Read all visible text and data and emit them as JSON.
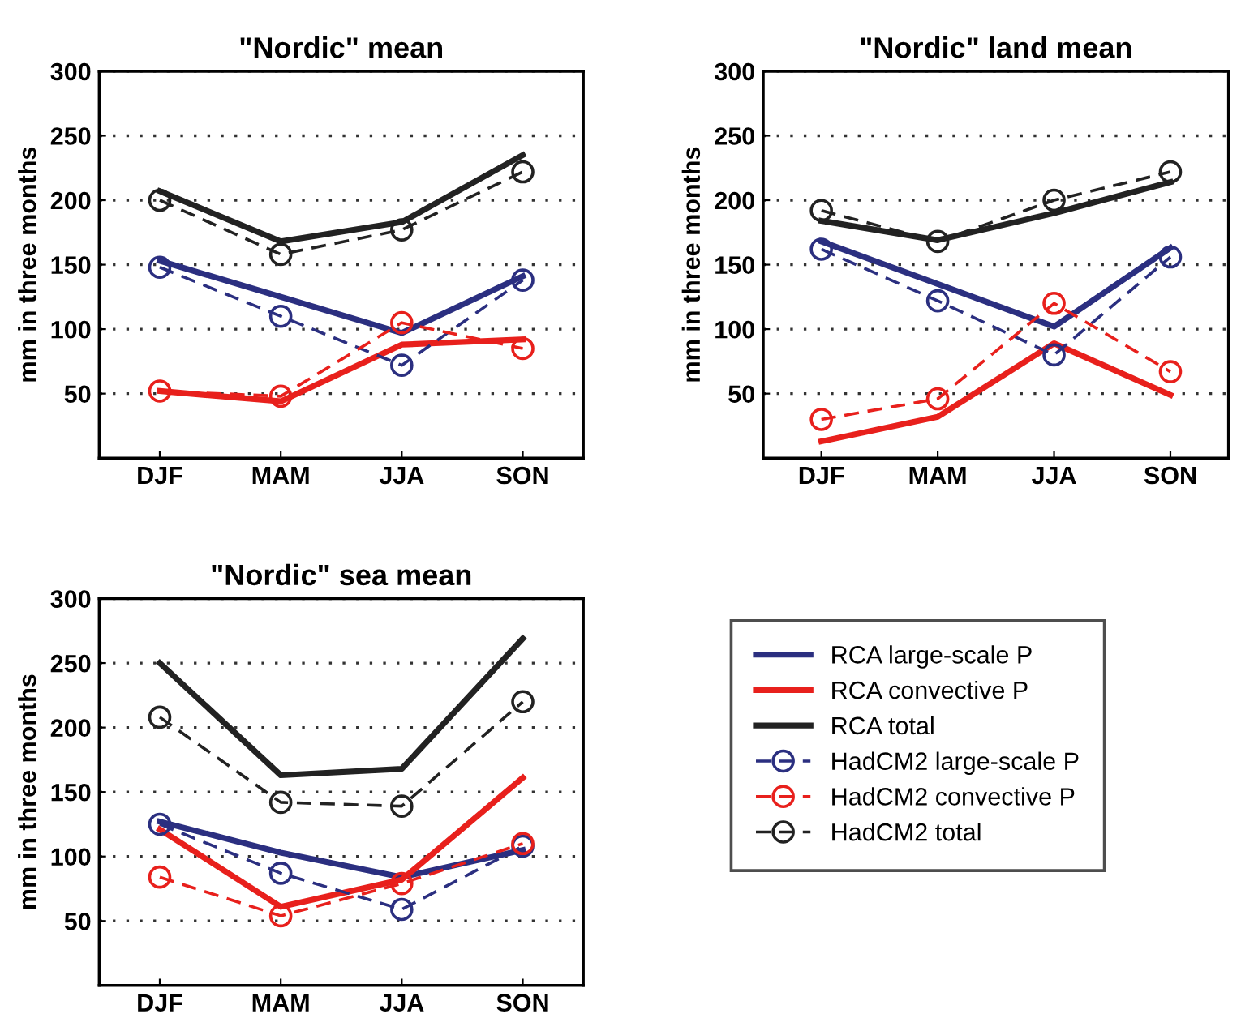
{
  "chart_data": [
    {
      "type": "line",
      "title": "\"Nordic\" mean",
      "ylabel": "mm in three months",
      "categories": [
        "DJF",
        "MAM",
        "JJA",
        "SON"
      ],
      "ylim": [
        0,
        300
      ],
      "yticks": [
        50,
        100,
        150,
        200,
        250,
        300
      ],
      "grid": "y",
      "legend": false,
      "series": [
        {
          "color": "#2b2f80",
          "line_style": "solid",
          "marker": "none",
          "values": [
            153,
            125,
            97,
            141
          ]
        },
        {
          "color": "#e8201c",
          "line_style": "solid",
          "marker": "none",
          "values": [
            52,
            44,
            88,
            92
          ]
        },
        {
          "color": "#222222",
          "line_style": "solid",
          "marker": "none",
          "values": [
            207,
            168,
            183,
            235
          ]
        },
        {
          "color": "#2b2f80",
          "line_style": "dashed",
          "marker": "circle",
          "values": [
            148,
            110,
            72,
            138
          ]
        },
        {
          "color": "#e8201c",
          "line_style": "dashed",
          "marker": "circle",
          "values": [
            52,
            48,
            105,
            85
          ]
        },
        {
          "color": "#222222",
          "line_style": "dashed",
          "marker": "circle",
          "values": [
            200,
            158,
            177,
            222
          ]
        }
      ]
    },
    {
      "type": "line",
      "title": "\"Nordic\" land mean",
      "ylabel": "mm in three months",
      "categories": [
        "DJF",
        "MAM",
        "JJA",
        "SON"
      ],
      "ylim": [
        0,
        300
      ],
      "yticks": [
        50,
        100,
        150,
        200,
        250,
        300
      ],
      "grid": "y",
      "legend": false,
      "series": [
        {
          "color": "#2b2f80",
          "line_style": "solid",
          "marker": "none",
          "values": [
            168,
            135,
            102,
            163
          ]
        },
        {
          "color": "#e8201c",
          "line_style": "solid",
          "marker": "none",
          "values": [
            13,
            32,
            89,
            49
          ]
        },
        {
          "color": "#222222",
          "line_style": "solid",
          "marker": "none",
          "values": [
            184,
            169,
            190,
            214
          ]
        },
        {
          "color": "#2b2f80",
          "line_style": "dashed",
          "marker": "circle",
          "values": [
            162,
            122,
            80,
            156
          ]
        },
        {
          "color": "#e8201c",
          "line_style": "dashed",
          "marker": "circle",
          "values": [
            30,
            46,
            120,
            67
          ]
        },
        {
          "color": "#222222",
          "line_style": "dashed",
          "marker": "circle",
          "values": [
            192,
            168,
            200,
            222
          ]
        }
      ]
    },
    {
      "type": "line",
      "title": "\"Nordic\" sea mean",
      "ylabel": "mm in three months",
      "categories": [
        "DJF",
        "MAM",
        "JJA",
        "SON"
      ],
      "ylim": [
        0,
        300
      ],
      "yticks": [
        50,
        100,
        150,
        200,
        250,
        300
      ],
      "grid": "y",
      "legend": "right",
      "series": [
        {
          "name": "RCA large-scale P",
          "color": "#2b2f80",
          "line_style": "solid",
          "marker": "none",
          "values": [
            127,
            103,
            84,
            105
          ]
        },
        {
          "name": "RCA convective P",
          "color": "#e8201c",
          "line_style": "solid",
          "marker": "none",
          "values": [
            121,
            61,
            82,
            161
          ]
        },
        {
          "name": "RCA total",
          "color": "#222222",
          "line_style": "solid",
          "marker": "none",
          "values": [
            250,
            163,
            168,
            269
          ]
        },
        {
          "name": "HadCM2 large-scale P",
          "color": "#2b2f80",
          "line_style": "dashed",
          "marker": "circle",
          "values": [
            125,
            87,
            59,
            108
          ]
        },
        {
          "name": "HadCM2 convective P",
          "color": "#e8201c",
          "line_style": "dashed",
          "marker": "circle",
          "values": [
            84,
            54,
            79,
            110
          ]
        },
        {
          "name": "HadCM2 total",
          "color": "#222222",
          "line_style": "dashed",
          "marker": "circle",
          "values": [
            208,
            142,
            139,
            220
          ]
        }
      ]
    }
  ]
}
